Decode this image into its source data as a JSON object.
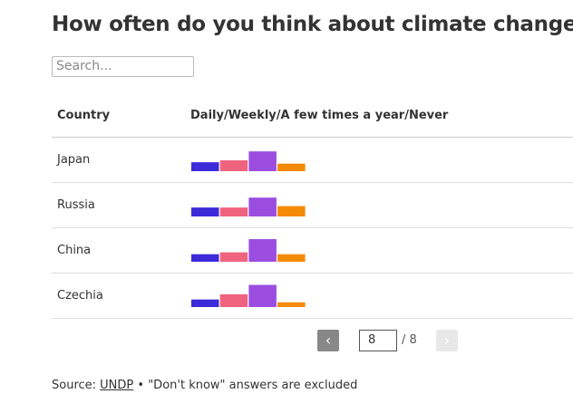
{
  "header": {
    "title": "How often do you think about climate change?",
    "search_placeholder": "Search..."
  },
  "table": {
    "columns": [
      "Country",
      "Daily/Weekly/A few times a year/Never"
    ],
    "series": [
      {
        "name": "Daily",
        "color": "#3d2bd9"
      },
      {
        "name": "Weekly",
        "color": "#f0637f"
      },
      {
        "name": "A few times a year",
        "color": "#9b4de0"
      },
      {
        "name": "Never",
        "color": "#f58a07"
      }
    ],
    "rows": [
      {
        "country": "Japan",
        "values": [
          19,
          23,
          42,
          16
        ]
      },
      {
        "country": "Russia",
        "values": [
          19,
          19,
          40,
          22
        ]
      },
      {
        "country": "China",
        "values": [
          16,
          20,
          48,
          16
        ]
      },
      {
        "country": "Czechia",
        "values": [
          16,
          27,
          47,
          10
        ]
      }
    ]
  },
  "pagination": {
    "prev": "‹",
    "page": 8,
    "of": "/ 8",
    "next": "›"
  },
  "footer": {
    "source_label": "Source:",
    "source_link": "UNDP",
    "note": "• \"Don't know\" answers are excluded"
  }
}
